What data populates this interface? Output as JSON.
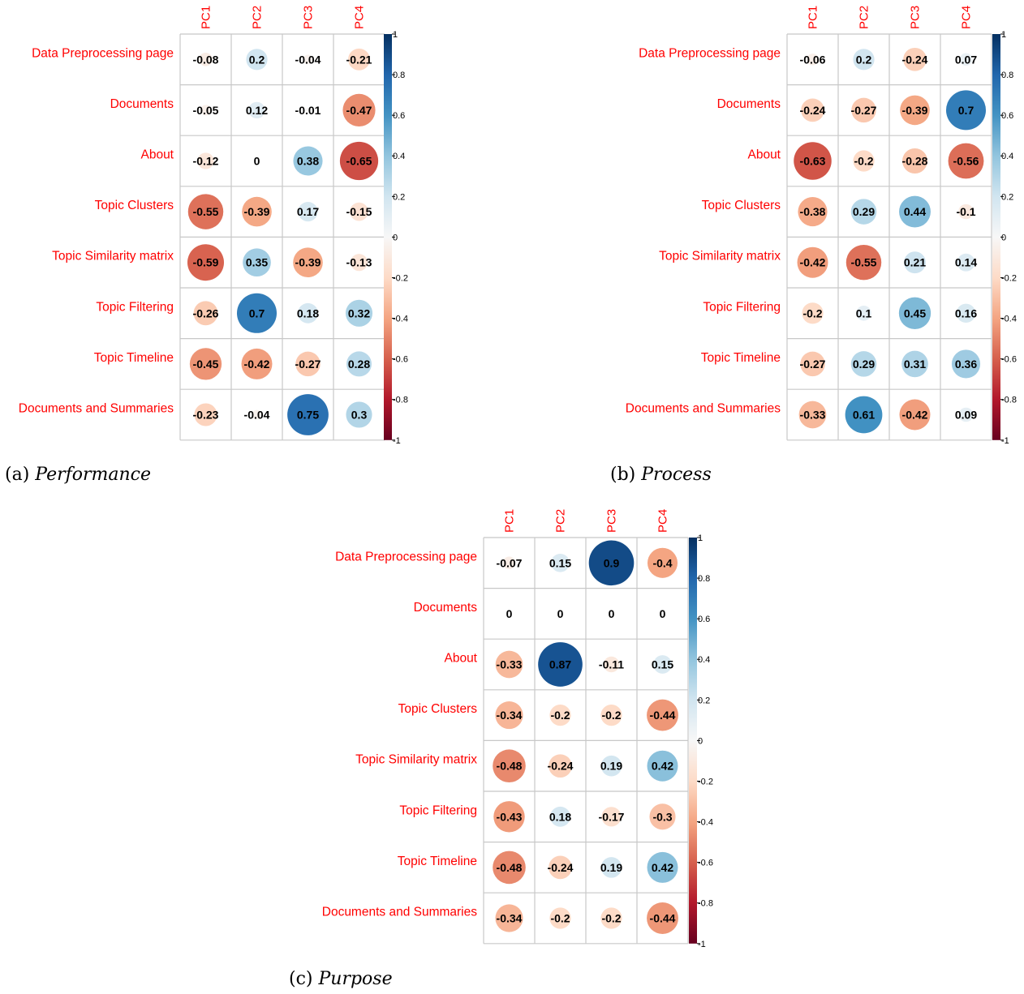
{
  "chart_data": [
    {
      "type": "heatmap",
      "variant": "correlation-circle",
      "caption_label": "(a)",
      "caption_title": "Performance",
      "columns": [
        "PC1",
        "PC2",
        "PC3",
        "PC4"
      ],
      "rows": [
        "Data Preprocessing page",
        "Documents",
        "About",
        "Topic Clusters",
        "Topic Similarity matrix",
        "Topic Filtering",
        "Topic Timeline",
        "Documents and Summaries"
      ],
      "values": [
        [
          -0.08,
          0.2,
          -0.04,
          -0.21
        ],
        [
          -0.05,
          0.12,
          -0.01,
          -0.47
        ],
        [
          -0.12,
          0,
          0.38,
          -0.65
        ],
        [
          -0.55,
          -0.39,
          0.17,
          -0.15
        ],
        [
          -0.59,
          0.35,
          -0.39,
          -0.13
        ],
        [
          -0.26,
          0.7,
          0.18,
          0.32
        ],
        [
          -0.45,
          -0.42,
          -0.27,
          0.28
        ],
        [
          -0.23,
          -0.04,
          0.75,
          0.3
        ]
      ],
      "colorbar_ticks": [
        "1",
        "0.8",
        "0.6",
        "0.4",
        "0.2",
        "0",
        "-0.2",
        "-0.4",
        "-0.6",
        "-0.8",
        "-1"
      ],
      "value_range": [
        -1,
        1
      ],
      "grid": true
    },
    {
      "type": "heatmap",
      "variant": "correlation-circle",
      "caption_label": "(b)",
      "caption_title": "Process",
      "columns": [
        "PC1",
        "PC2",
        "PC3",
        "PC4"
      ],
      "rows": [
        "Data Preprocessing page",
        "Documents",
        "About",
        "Topic Clusters",
        "Topic Similarity matrix",
        "Topic Filtering",
        "Topic Timeline",
        "Documents and Summaries"
      ],
      "values": [
        [
          -0.06,
          0.2,
          -0.24,
          0.07
        ],
        [
          -0.24,
          -0.27,
          -0.39,
          0.7
        ],
        [
          -0.63,
          -0.2,
          -0.28,
          -0.56
        ],
        [
          -0.38,
          0.29,
          0.44,
          -0.1
        ],
        [
          -0.42,
          -0.55,
          0.21,
          0.14
        ],
        [
          -0.2,
          0.1,
          0.45,
          0.16
        ],
        [
          -0.27,
          0.29,
          0.31,
          0.36
        ],
        [
          -0.33,
          0.61,
          -0.42,
          0.09
        ]
      ],
      "colorbar_ticks": [
        "1",
        "0.8",
        "0.6",
        "0.4",
        "0.2",
        "0",
        "-0.2",
        "-0.4",
        "-0.6",
        "-0.8",
        "-1"
      ],
      "value_range": [
        -1,
        1
      ],
      "grid": true
    },
    {
      "type": "heatmap",
      "variant": "correlation-circle",
      "caption_label": "(c)",
      "caption_title": "Purpose",
      "columns": [
        "PC1",
        "PC2",
        "PC3",
        "PC4"
      ],
      "rows": [
        "Data Preprocessing page",
        "Documents",
        "About",
        "Topic Clusters",
        "Topic Similarity matrix",
        "Topic Filtering",
        "Topic Timeline",
        "Documents and Summaries"
      ],
      "values": [
        [
          -0.07,
          0.15,
          0.9,
          -0.4
        ],
        [
          0,
          0,
          0,
          0
        ],
        [
          -0.33,
          0.87,
          -0.11,
          0.15
        ],
        [
          -0.34,
          -0.2,
          -0.2,
          -0.44
        ],
        [
          -0.48,
          -0.24,
          0.19,
          0.42
        ],
        [
          -0.43,
          0.18,
          -0.17,
          -0.3
        ],
        [
          -0.48,
          -0.24,
          0.19,
          0.42
        ],
        [
          -0.34,
          -0.2,
          -0.2,
          -0.44
        ]
      ],
      "colorbar_ticks": [
        "1",
        "0.8",
        "0.6",
        "0.4",
        "0.2",
        "0",
        "-0.2",
        "-0.4",
        "-0.6",
        "-0.8",
        "-1"
      ],
      "value_range": [
        -1,
        1
      ],
      "grid": true
    }
  ],
  "colors": {
    "row_label": "#ff0000",
    "column_label": "#ff0000",
    "grid_line": "#c8c8c8",
    "value_text": "#000000",
    "scale_negative_end": "#67001f",
    "scale_midpoint": "#f7f7f7",
    "scale_positive_end": "#053061"
  }
}
